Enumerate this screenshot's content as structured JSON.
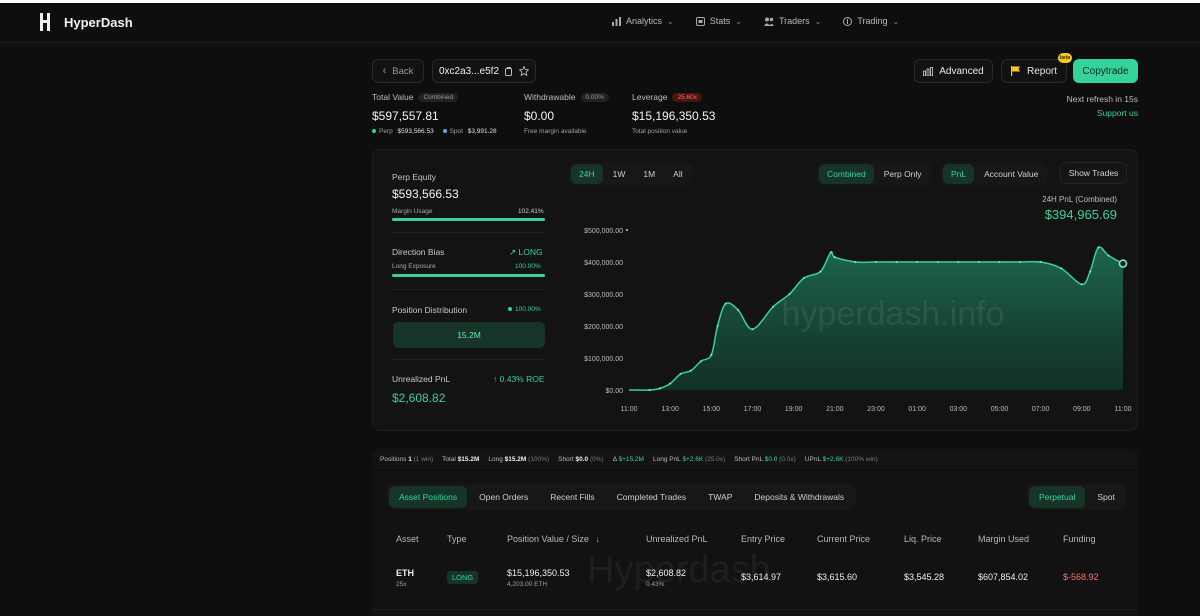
{
  "nav": {
    "brand": "HyperDash",
    "menu": [
      {
        "label": "Analytics",
        "icon": "bar-chart-icon"
      },
      {
        "label": "Stats",
        "icon": "stats-icon"
      },
      {
        "label": "Traders",
        "icon": "users-icon"
      },
      {
        "label": "Trading",
        "icon": "trading-icon"
      }
    ]
  },
  "toolbar": {
    "back_label": "Back",
    "address": "0xc2a3...e5f2",
    "advanced_label": "Advanced",
    "report_label": "Report",
    "report_badge": "beta",
    "copytrade_label": "Copytrade"
  },
  "stats": {
    "total_value_label": "Total Value",
    "total_value_tag": "Combined",
    "total_value": "$597,557.81",
    "perp_label": "Perp",
    "perp_value": "$593,566.53",
    "spot_label": "Spot",
    "spot_value": "$3,991.28",
    "withdrawable_label": "Withdrawable",
    "withdrawable_tag": "0.00%",
    "withdrawable_value": "$0.00",
    "withdrawable_sub": "Free margin available",
    "leverage_label": "Leverage",
    "leverage_tag": "25.60x",
    "leverage_value": "$15,196,350.53",
    "leverage_sub": "Total position value",
    "refresh": "Next refresh in 15s",
    "support": "Support us"
  },
  "left_panel": {
    "perp_equity_label": "Perp Equity",
    "perp_equity": "$593,566.53",
    "margin_usage_label": "Margin Usage",
    "margin_usage": "102.41%",
    "margin_usage_frac": 1.0,
    "direction_bias_label": "Direction Bias",
    "direction_bias": "LONG",
    "long_exposure_label": "Long Exposure",
    "long_exposure": "100.00%",
    "long_exposure_frac": 1.0,
    "position_distribution_label": "Position Distribution",
    "position_distribution_pct": "100.00%",
    "distribution_value": "15.2M",
    "unrealized_pnl_label": "Unrealized PnL",
    "roe": "0.43% ROE",
    "unrealized_pnl": "$2,608.82"
  },
  "chart_controls": {
    "ranges": [
      "24H",
      "1W",
      "1M",
      "All"
    ],
    "active_range": "24H",
    "modes": [
      "Combined",
      "Perp Only"
    ],
    "active_mode": "Combined",
    "metrics": [
      "PnL",
      "Account Value"
    ],
    "active_metric": "PnL",
    "show_trades": "Show Trades",
    "pnl_caption": "24H PnL (Combined)",
    "pnl_value": "$394,965.69"
  },
  "chart_data": {
    "type": "area",
    "title": "",
    "xlabel": "",
    "ylabel": "",
    "x_ticks": [
      "11:00",
      "13:00",
      "15:00",
      "17:00",
      "19:00",
      "21:00",
      "23:00",
      "01:00",
      "03:00",
      "05:00",
      "07:00",
      "09:00",
      "11:00"
    ],
    "y_ticks": [
      "$500,000.00",
      "$400,000.00",
      "$300,000.00",
      "$200,000.00",
      "$100,000.00",
      "$0.00"
    ],
    "ylim": [
      0,
      500000
    ],
    "x_hours": [
      0,
      1,
      1.5,
      2,
      2.5,
      3,
      3.5,
      4,
      4.3,
      4.7,
      5.3,
      6,
      7,
      7.8,
      8.5,
      9.3,
      9.8,
      10,
      11,
      12,
      13,
      14,
      15,
      16,
      17,
      18,
      19,
      20,
      21,
      22,
      22.4,
      22.8,
      23.3,
      24
    ],
    "values": [
      0,
      0,
      5000,
      20000,
      50000,
      60000,
      90000,
      110000,
      200000,
      270000,
      250000,
      190000,
      260000,
      300000,
      350000,
      370000,
      430000,
      415000,
      400000,
      400000,
      400000,
      400000,
      400000,
      400000,
      400000,
      400000,
      400000,
      400000,
      380000,
      330000,
      370000,
      445000,
      420000,
      395000
    ],
    "series": [
      {
        "values_ref": "values"
      }
    ],
    "grid": false,
    "legend": "none",
    "colors": {
      "line": "#34d399",
      "fill": "#1a5a42"
    },
    "watermark": "hyperdash.info"
  },
  "summary": {
    "positions_label": "Positions",
    "positions_count": "1",
    "positions_win": "(1 win)",
    "total_label": "Total",
    "total": "$15.2M",
    "long_label": "Long",
    "long_value": "$15.2M",
    "long_pct": "(100%)",
    "short_label": "Short",
    "short_value": "$0.0",
    "short_pct": "(0%)",
    "delta_label": "Δ",
    "delta_value": "$+15.2M",
    "long_pnl_label": "Long PnL",
    "long_pnl": "$+2.6K",
    "long_pnl_x": "(25.0x)",
    "short_pnl_label": "Short PnL",
    "short_pnl": "$0.0",
    "short_pnl_x": "(0.0x)",
    "upnl_label": "UPnL",
    "upnl": "$+2.6K",
    "upnl_win": "(100% win)"
  },
  "positions": {
    "tabs": [
      "Asset Positions",
      "Open Orders",
      "Recent Fills",
      "Completed Trades",
      "TWAP",
      "Deposits & Withdrawals"
    ],
    "active_tab": "Asset Positions",
    "market_tabs": [
      "Perpetual",
      "Spot"
    ],
    "active_market": "Perpetual",
    "headers": [
      "Asset",
      "Type",
      "Position Value / Size",
      "Unrealized PnL",
      "Entry Price",
      "Current Price",
      "Liq. Price",
      "Margin Used",
      "Funding"
    ],
    "rows": [
      {
        "asset": "ETH",
        "leverage": "25x",
        "type": "LONG",
        "position_value": "$15,196,350.53",
        "size": "4,203.00 ETH",
        "unrealized_pnl": "$2,608.82",
        "pnl_pct": "0.43%",
        "entry_price": "$3,614.97",
        "current_price": "$3,615.60",
        "liq_price": "$3,545.28",
        "margin_used": "$607,854.02",
        "funding": "$-568.92"
      }
    ],
    "watermark": "Hyperdash"
  }
}
